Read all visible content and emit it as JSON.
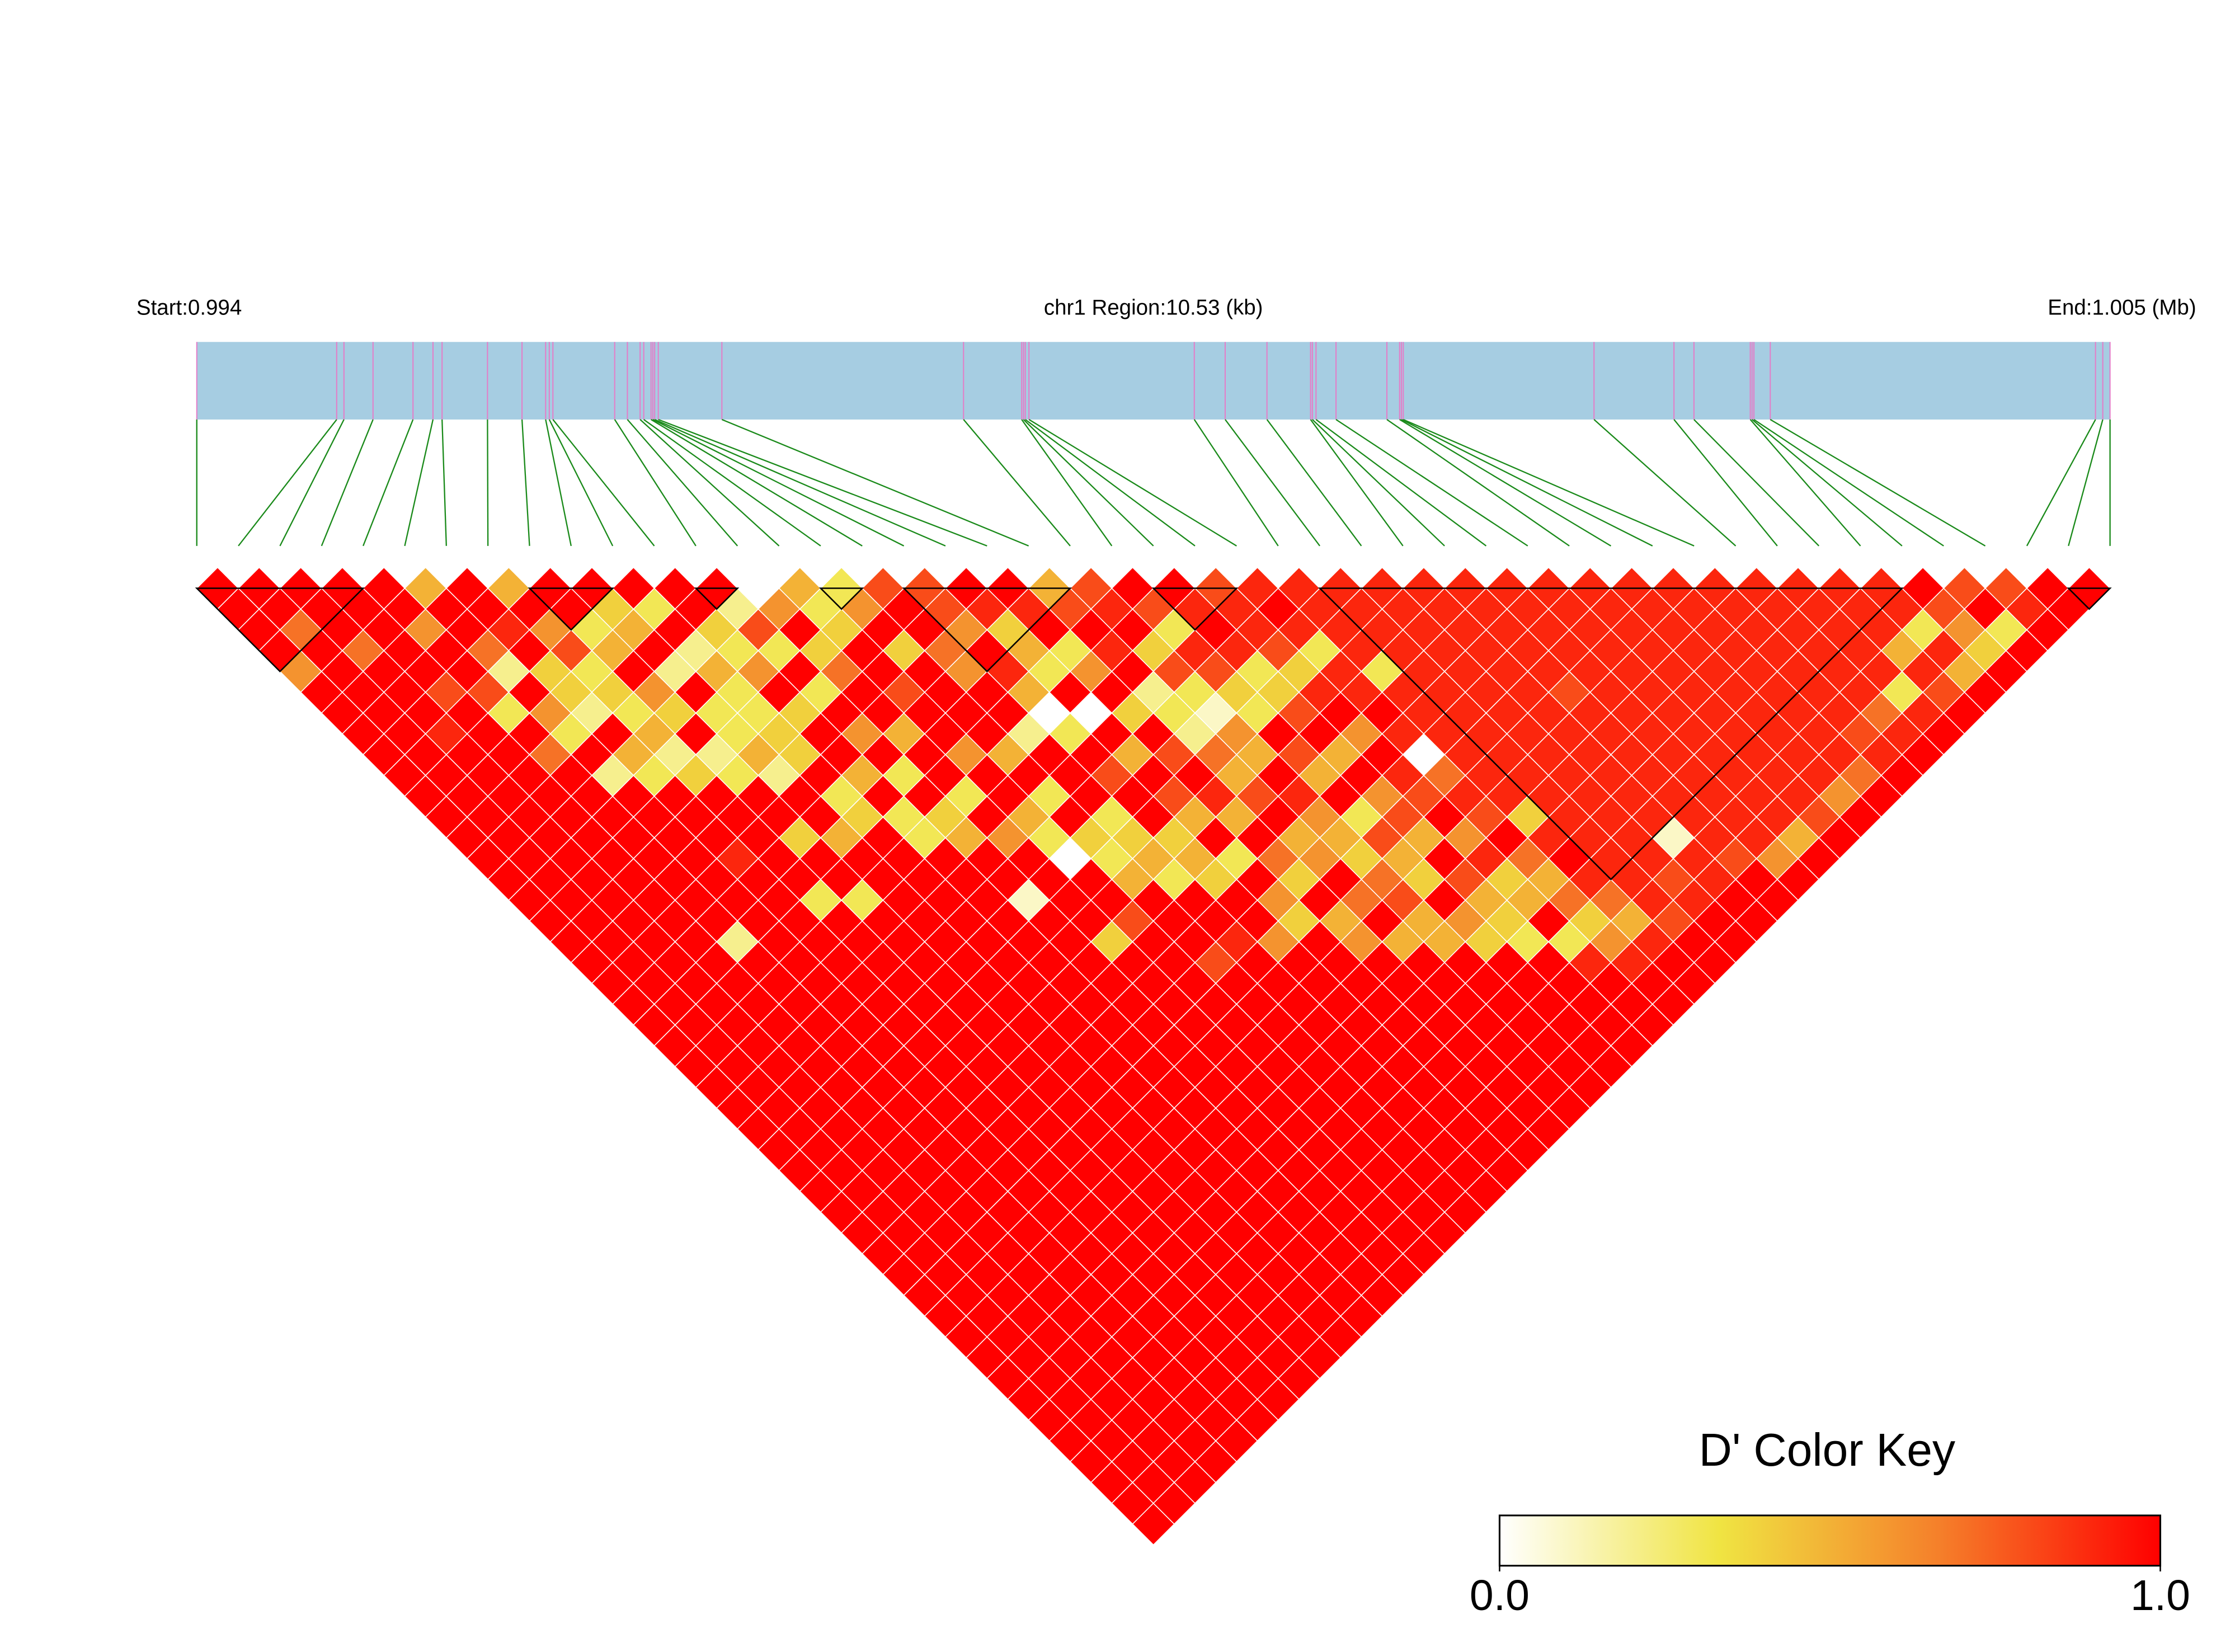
{
  "chart_data": {
    "type": "ld_heatmap",
    "start_label": "Start:0.994",
    "region_label": "chr1 Region:10.53 (kb)",
    "end_label": "End:1.005 (Mb)",
    "xlim": [
      0.994,
      1.00453
    ],
    "track_color": "#a6cde2",
    "snp_line_color": "#e37ec8",
    "link_color": "#1a8a1a",
    "snp_positions": [
      0.994,
      0.99477,
      0.99481,
      0.99497,
      0.99519,
      0.9953,
      0.99535,
      0.9956,
      0.99579,
      0.99592,
      0.99594,
      0.99596,
      0.9963,
      0.99637,
      0.99644,
      0.99646,
      0.9965,
      0.99651,
      0.99652,
      0.99654,
      0.99689,
      0.99822,
      0.99854,
      0.99855,
      0.99856,
      0.99858,
      0.99949,
      0.99966,
      0.99989,
      1.00013,
      1.00014,
      1.00016,
      1.00027,
      1.00055,
      1.00062,
      1.00063,
      1.00064,
      1.00169,
      1.00213,
      1.00224,
      1.00255,
      1.00256,
      1.00257,
      1.00266,
      1.00445,
      1.00449,
      1.00453
    ],
    "dprime": [
      [
        1,
        1,
        1,
        1,
        0.6,
        1,
        1,
        1,
        1,
        1,
        1,
        1,
        1,
        1,
        1,
        1,
        1,
        1,
        1,
        1,
        1,
        1,
        1,
        1,
        1,
        1,
        1,
        1,
        1,
        1,
        1,
        1,
        1,
        1,
        1,
        1,
        1,
        1,
        1,
        1,
        1,
        1,
        1,
        1,
        1,
        1
      ],
      [
        1,
        1,
        0.7,
        1,
        1,
        1,
        1,
        1,
        1,
        1,
        1,
        1,
        1,
        1,
        1,
        1,
        1,
        1,
        1,
        1,
        1,
        1,
        1,
        1,
        1,
        1,
        1,
        1,
        1,
        1,
        1,
        1,
        1,
        1,
        1,
        1,
        1,
        1,
        1,
        1,
        1,
        1,
        1,
        1,
        1
      ],
      [
        1,
        1,
        1,
        0.7,
        1,
        1,
        1,
        0.9,
        1,
        1,
        1,
        1,
        1,
        1,
        1,
        1,
        1,
        1,
        1,
        1,
        1,
        1,
        1,
        1,
        1,
        1,
        1,
        1,
        1,
        1,
        1,
        1,
        1,
        1,
        1,
        1,
        1,
        1,
        1,
        1,
        1,
        1,
        1,
        1
      ],
      [
        1,
        1,
        1,
        1,
        1,
        0.8,
        1,
        1,
        1,
        1,
        1,
        1,
        1,
        1,
        1,
        1,
        1,
        1,
        1,
        1,
        1,
        1,
        1,
        1,
        1,
        1,
        1,
        1,
        1,
        1,
        1,
        1,
        1,
        1,
        1,
        1,
        1,
        1,
        1,
        1,
        1,
        1,
        1
      ],
      [
        1,
        1,
        0.6,
        1,
        1,
        0.8,
        0.3,
        1,
        0.7,
        1,
        1,
        1,
        1,
        1,
        1,
        1,
        1,
        0.2,
        1,
        1,
        1,
        1,
        1,
        1,
        1,
        1,
        1,
        1,
        1,
        1,
        1,
        1,
        1,
        1,
        1,
        1,
        1,
        1,
        1,
        1,
        1,
        1
      ],
      [
        0.5,
        1,
        1,
        0.7,
        0.2,
        1,
        0.6,
        0.3,
        1,
        0.2,
        1,
        1,
        1,
        1,
        1,
        1,
        1,
        1,
        1,
        1,
        1,
        1,
        1,
        1,
        1,
        1,
        1,
        1,
        1,
        1,
        1,
        1,
        1,
        1,
        1,
        1,
        1,
        1,
        1,
        1,
        1
      ],
      [
        1,
        1,
        0.9,
        1,
        0.4,
        0.4,
        0.2,
        1,
        0.5,
        0.3,
        1,
        1,
        1,
        0.9,
        1,
        1,
        1,
        1,
        1,
        1,
        1,
        1,
        1,
        1,
        1,
        1,
        1,
        1,
        1,
        1,
        1,
        1,
        1,
        1,
        1,
        1,
        1,
        1,
        1,
        1
      ],
      [
        0.5,
        1,
        0.6,
        0.8,
        0.3,
        0.4,
        0.3,
        0.5,
        0.2,
        0.4,
        1,
        1,
        1,
        1,
        1,
        0.3,
        1,
        1,
        1,
        1,
        1,
        1,
        1,
        1,
        1,
        1,
        1,
        1,
        1,
        1,
        1,
        1,
        1,
        1,
        1,
        1,
        1,
        1,
        1
      ],
      [
        1,
        1,
        0.3,
        0.5,
        1,
        0.6,
        0.4,
        1,
        0.2,
        0.3,
        1,
        1,
        0.4,
        1,
        1,
        0.3,
        1,
        1,
        1,
        1,
        1,
        1,
        1,
        1,
        1,
        1,
        1,
        1,
        1,
        1,
        1,
        1,
        1,
        1,
        1,
        1,
        1,
        1
      ],
      [
        1,
        0.4,
        0.5,
        1,
        0.2,
        1,
        0.3,
        0.3,
        0.5,
        0.2,
        1,
        1,
        0.5,
        1,
        1,
        1,
        1,
        1,
        1,
        1,
        1,
        1,
        1,
        1,
        1,
        1,
        1,
        1,
        1,
        1,
        1,
        1,
        1,
        1,
        1,
        1,
        1
      ],
      [
        1,
        0.3,
        1,
        0.2,
        0.5,
        0.3,
        0.3,
        0.4,
        0.4,
        1,
        0.3,
        0.4,
        1,
        1,
        1,
        1,
        1,
        1,
        1,
        1,
        1,
        1,
        1,
        1,
        1,
        1,
        1,
        1,
        1,
        1,
        1,
        1,
        1,
        1,
        1,
        1
      ],
      [
        1,
        1,
        0.4,
        0.3,
        0.6,
        1,
        0.4,
        1,
        1,
        0.5,
        1,
        0.3,
        0.3,
        1,
        1,
        1,
        1,
        1,
        1,
        1,
        1,
        1,
        1,
        1,
        1,
        1,
        1,
        1,
        1,
        1,
        1,
        1,
        1,
        1,
        1
      ],
      [
        1,
        0.2,
        0.8,
        0.3,
        1,
        0.3,
        1,
        0.6,
        1,
        0.3,
        1,
        0.4,
        0.5,
        1,
        1,
        0.1,
        1,
        1,
        1,
        1,
        1,
        1,
        1,
        1,
        1,
        1,
        1,
        1,
        1,
        1,
        1,
        1,
        1,
        1
      ],
      [
        0,
        0.6,
        1,
        0.4,
        0.7,
        1,
        1,
        0.5,
        1,
        1,
        0.3,
        1,
        0.6,
        1,
        1,
        1,
        1,
        0.4,
        1,
        1,
        1,
        1,
        1,
        1,
        1,
        1,
        1,
        1,
        1,
        1,
        1,
        1,
        1
      ],
      [
        0.5,
        0.3,
        0.4,
        1,
        1,
        0.8,
        1,
        1,
        0.6,
        1,
        1,
        0.5,
        0.3,
        0,
        1,
        1,
        0.8,
        1,
        1,
        1,
        1,
        1,
        1,
        1,
        1,
        1,
        1,
        1,
        1,
        1,
        1,
        1
      ],
      [
        0.3,
        0.6,
        1,
        0.4,
        1,
        1,
        1,
        1,
        0.5,
        1,
        0.3,
        1,
        0.4,
        0.3,
        0.5,
        1,
        1,
        1,
        0.8,
        1,
        1,
        1,
        1,
        1,
        1,
        1,
        1,
        1,
        1,
        1,
        1
      ],
      [
        0.8,
        1,
        1,
        0.7,
        0.6,
        1,
        1,
        0.2,
        1,
        1,
        1,
        0.3,
        0.4,
        0.5,
        0.3,
        1,
        1,
        0.9,
        1,
        1,
        1,
        1,
        1,
        1,
        1,
        1,
        1,
        1,
        1,
        1
      ],
      [
        0.8,
        0.8,
        0.6,
        1,
        0.9,
        0.5,
        0,
        0.3,
        1,
        0.8,
        1,
        1,
        0.4,
        0.5,
        0.4,
        1,
        1,
        0.6,
        1,
        1,
        1,
        1,
        1,
        1,
        1,
        1,
        1,
        1,
        1
      ],
      [
        1,
        0.9,
        0.4,
        0.5,
        0.3,
        1,
        0,
        1,
        0.5,
        1,
        0.8,
        0.5,
        1,
        0.3,
        1,
        0.6,
        0.4,
        1,
        1,
        1,
        1,
        1,
        1,
        1,
        1,
        1,
        1,
        1
      ],
      [
        1,
        0.9,
        1,
        0.3,
        0.6,
        1,
        0.4,
        1,
        0.8,
        1,
        0.9,
        0.5,
        1,
        0.7,
        0.4,
        1,
        0.5,
        0.6,
        1,
        1,
        1,
        1,
        1,
        1,
        1,
        1,
        1
      ],
      [
        0.5,
        0.8,
        1,
        0.9,
        1,
        0.2,
        0.3,
        0.2,
        0.7,
        0.5,
        0.8,
        1,
        0.5,
        0.6,
        1,
        0.7,
        1,
        0.5,
        1,
        1,
        1,
        1,
        1,
        1,
        1,
        1
      ],
      [
        0.8,
        0.9,
        1,
        0.4,
        0.8,
        0.3,
        0.1,
        0.6,
        0.5,
        1,
        0.9,
        0.6,
        0.5,
        0.4,
        0.7,
        0.8,
        0.5,
        0.5,
        1,
        1,
        1,
        1,
        1,
        1,
        1
      ],
      [
        1,
        0.8,
        0.3,
        0.9,
        0.8,
        0.4,
        0.3,
        1,
        0.8,
        0.5,
        1,
        0.3,
        0.8,
        0.5,
        0.4,
        1,
        0.6,
        0.4,
        1,
        1,
        1,
        1,
        1,
        1
      ],
      [
        1,
        0.9,
        1,
        0.9,
        0.3,
        0.4,
        0.8,
        1,
        0.5,
        1,
        0.6,
        0.8,
        0.5,
        1,
        0.8,
        0.5,
        0.4,
        0.3,
        1,
        1,
        1,
        1,
        1
      ],
      [
        0.8,
        0.9,
        0.9,
        0.8,
        0.4,
        0.9,
        1,
        0.6,
        1,
        0.9,
        0.8,
        1,
        0.6,
        0.9,
        0.4,
        0.5,
        1,
        0.3,
        0.9,
        1,
        1,
        1
      ],
      [
        0.9,
        1,
        0.9,
        0.3,
        0.9,
        0.9,
        1,
        0.9,
        0,
        0.7,
        0.9,
        0.8,
        1,
        0.7,
        0.5,
        0.7,
        0.4,
        0.6,
        0.9,
        1,
        1
      ],
      [
        0.9,
        0.9,
        0.9,
        0.9,
        0.3,
        0.9,
        0.9,
        0.9,
        0.9,
        0.9,
        0.9,
        0.4,
        0.9,
        1,
        0.9,
        0.7,
        0.5,
        0.9,
        1,
        1
      ],
      [
        0.9,
        0.9,
        0.9,
        0.9,
        0.9,
        0.9,
        0.9,
        0.9,
        0.9,
        0.9,
        0.9,
        0.9,
        0.9,
        0.9,
        0.9,
        0.9,
        0.8,
        1,
        1
      ],
      [
        0.9,
        0.9,
        0.9,
        0.9,
        0.9,
        0.9,
        0.9,
        0.9,
        0.9,
        0.9,
        0.9,
        0.9,
        0.9,
        0.9,
        0.8,
        0.9,
        1,
        1
      ],
      [
        0.9,
        0.9,
        0.9,
        0.9,
        0.9,
        0.9,
        0.9,
        0.9,
        0.9,
        0.9,
        0.9,
        0.9,
        0.1,
        0.9,
        0.9,
        1,
        1
      ],
      [
        0.9,
        0.9,
        0.9,
        0.9,
        0.9,
        0.8,
        0.9,
        0.9,
        0.9,
        0.9,
        0.9,
        0.9,
        0.9,
        0.8,
        1,
        1
      ],
      [
        0.9,
        0.9,
        0.9,
        0.9,
        0.9,
        0.9,
        0.9,
        0.9,
        0.9,
        0.9,
        0.9,
        0.9,
        0.9,
        0.6,
        1
      ],
      [
        0.9,
        0.9,
        0.9,
        0.9,
        0.9,
        0.9,
        0.9,
        0.9,
        0.9,
        0.9,
        0.9,
        0.9,
        0.5,
        1
      ],
      [
        0.9,
        0.9,
        0.9,
        0.9,
        0.9,
        0.9,
        0.9,
        0.9,
        0.9,
        0.9,
        0.9,
        0.8,
        1
      ],
      [
        0.9,
        0.9,
        0.9,
        0.9,
        0.9,
        0.9,
        0.9,
        0.9,
        0.9,
        0.9,
        0.6,
        1
      ],
      [
        0.9,
        0.9,
        0.9,
        0.9,
        0.9,
        0.9,
        0.9,
        0.9,
        0.9,
        0.7,
        1
      ],
      [
        0.9,
        0.9,
        0.9,
        0.9,
        0.9,
        0.9,
        0.9,
        0.8,
        0.9,
        1
      ],
      [
        0.9,
        0.9,
        0.9,
        0.9,
        0.9,
        0.9,
        0.7,
        0.9,
        1
      ],
      [
        0.9,
        0.9,
        0.9,
        0.9,
        0.9,
        0.3,
        0.9,
        1
      ],
      [
        0.9,
        0.9,
        0.9,
        0.5,
        0.9,
        0.8,
        1
      ],
      [
        0.9,
        0.9,
        0.3,
        0.9,
        0.5,
        1
      ],
      [
        1,
        0.8,
        0.6,
        0.4,
        1
      ],
      [
        0.8,
        1,
        0.3,
        1
      ],
      [
        0.8,
        0.9,
        1
      ],
      [
        1,
        1
      ],
      [
        1
      ]
    ],
    "blocks": [
      [
        0,
        4
      ],
      [
        8,
        10
      ],
      [
        12,
        13
      ],
      [
        15,
        16
      ],
      [
        17,
        21
      ],
      [
        23,
        25
      ],
      [
        27,
        41
      ],
      [
        45,
        46
      ]
    ],
    "color_key": {
      "title": "D' Color Key",
      "lim": [
        0,
        1
      ],
      "ticks": [
        {
          "value": 0,
          "label": "0.0"
        },
        {
          "value": 1,
          "label": "1.0"
        }
      ],
      "colors": [
        "#ffffff",
        "#f0e442",
        "#f57f2a",
        "#ff0000"
      ]
    }
  }
}
